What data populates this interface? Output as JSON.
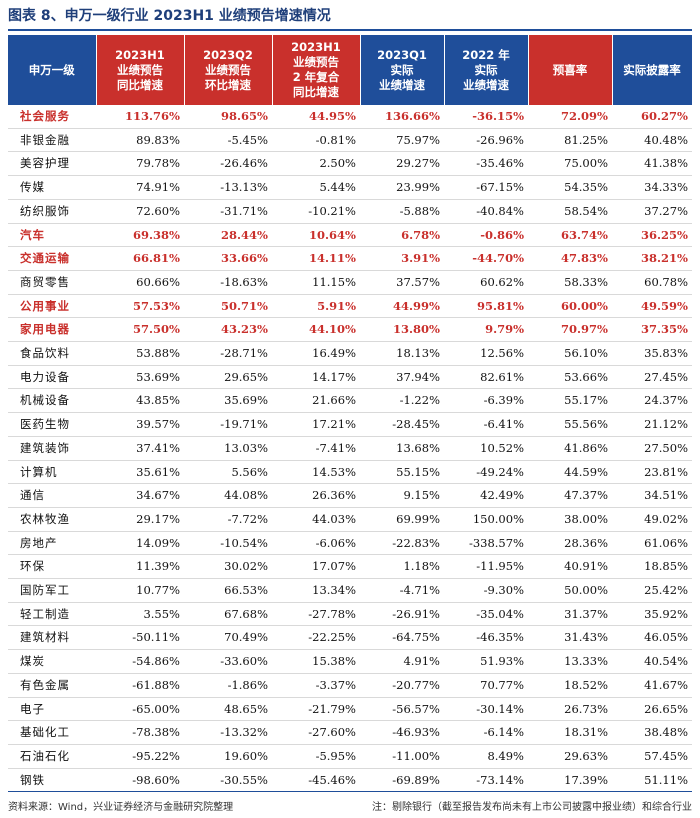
{
  "title": "图表 8、申万一级行业 2023H1 业绩预告增速情况",
  "headers": [
    {
      "text": "申万一级",
      "tone": "blue"
    },
    {
      "text": "2023H1\n业绩预告\n同比增速",
      "tone": "red"
    },
    {
      "text": "2023Q2\n业绩预告\n环比增速",
      "tone": "red"
    },
    {
      "text": "2023H1\n业绩预告\n2 年复合\n同比增速",
      "tone": "red"
    },
    {
      "text": "2023Q1\n实际\n业绩增速",
      "tone": "blue"
    },
    {
      "text": "2022 年\n实际\n业绩增速",
      "tone": "blue"
    },
    {
      "text": "预喜率",
      "tone": "red"
    },
    {
      "text": "实际披露率",
      "tone": "blue"
    }
  ],
  "rows": [
    {
      "industry": "社会服务",
      "h1_yoy": "113.76%",
      "q2_qoq": "98.65%",
      "h1_cagr2y": "44.95%",
      "q1_actual": "136.66%",
      "y2022_actual": "-36.15%",
      "positive_rate": "72.09%",
      "disclosure_rate": "60.27%",
      "highlight": true
    },
    {
      "industry": "非银金融",
      "h1_yoy": "89.83%",
      "q2_qoq": "-5.45%",
      "h1_cagr2y": "-0.81%",
      "q1_actual": "75.97%",
      "y2022_actual": "-26.96%",
      "positive_rate": "81.25%",
      "disclosure_rate": "40.48%",
      "highlight": false
    },
    {
      "industry": "美容护理",
      "h1_yoy": "79.78%",
      "q2_qoq": "-26.46%",
      "h1_cagr2y": "2.50%",
      "q1_actual": "29.27%",
      "y2022_actual": "-35.46%",
      "positive_rate": "75.00%",
      "disclosure_rate": "41.38%",
      "highlight": false
    },
    {
      "industry": "传媒",
      "h1_yoy": "74.91%",
      "q2_qoq": "-13.13%",
      "h1_cagr2y": "5.44%",
      "q1_actual": "23.99%",
      "y2022_actual": "-67.15%",
      "positive_rate": "54.35%",
      "disclosure_rate": "34.33%",
      "highlight": false
    },
    {
      "industry": "纺织服饰",
      "h1_yoy": "72.60%",
      "q2_qoq": "-31.71%",
      "h1_cagr2y": "-10.21%",
      "q1_actual": "-5.88%",
      "y2022_actual": "-40.84%",
      "positive_rate": "58.54%",
      "disclosure_rate": "37.27%",
      "highlight": false
    },
    {
      "industry": "汽车",
      "h1_yoy": "69.38%",
      "q2_qoq": "28.44%",
      "h1_cagr2y": "10.64%",
      "q1_actual": "6.78%",
      "y2022_actual": "-0.86%",
      "positive_rate": "63.74%",
      "disclosure_rate": "36.25%",
      "highlight": true
    },
    {
      "industry": "交通运输",
      "h1_yoy": "66.81%",
      "q2_qoq": "33.66%",
      "h1_cagr2y": "14.11%",
      "q1_actual": "3.91%",
      "y2022_actual": "-44.70%",
      "positive_rate": "47.83%",
      "disclosure_rate": "38.21%",
      "highlight": true
    },
    {
      "industry": "商贸零售",
      "h1_yoy": "60.66%",
      "q2_qoq": "-18.63%",
      "h1_cagr2y": "11.15%",
      "q1_actual": "37.57%",
      "y2022_actual": "60.62%",
      "positive_rate": "58.33%",
      "disclosure_rate": "60.78%",
      "highlight": false
    },
    {
      "industry": "公用事业",
      "h1_yoy": "57.53%",
      "q2_qoq": "50.71%",
      "h1_cagr2y": "5.91%",
      "q1_actual": "44.99%",
      "y2022_actual": "95.81%",
      "positive_rate": "60.00%",
      "disclosure_rate": "49.59%",
      "highlight": true
    },
    {
      "industry": "家用电器",
      "h1_yoy": "57.50%",
      "q2_qoq": "43.23%",
      "h1_cagr2y": "44.10%",
      "q1_actual": "13.80%",
      "y2022_actual": "9.79%",
      "positive_rate": "70.97%",
      "disclosure_rate": "37.35%",
      "highlight": true
    },
    {
      "industry": "食品饮料",
      "h1_yoy": "53.88%",
      "q2_qoq": "-28.71%",
      "h1_cagr2y": "16.49%",
      "q1_actual": "18.13%",
      "y2022_actual": "12.56%",
      "positive_rate": "56.10%",
      "disclosure_rate": "35.83%",
      "highlight": false
    },
    {
      "industry": "电力设备",
      "h1_yoy": "53.69%",
      "q2_qoq": "29.65%",
      "h1_cagr2y": "14.17%",
      "q1_actual": "37.94%",
      "y2022_actual": "82.61%",
      "positive_rate": "53.66%",
      "disclosure_rate": "27.45%",
      "highlight": false
    },
    {
      "industry": "机械设备",
      "h1_yoy": "43.85%",
      "q2_qoq": "35.69%",
      "h1_cagr2y": "21.66%",
      "q1_actual": "-1.22%",
      "y2022_actual": "-6.39%",
      "positive_rate": "55.17%",
      "disclosure_rate": "24.37%",
      "highlight": false
    },
    {
      "industry": "医药生物",
      "h1_yoy": "39.57%",
      "q2_qoq": "-19.71%",
      "h1_cagr2y": "17.21%",
      "q1_actual": "-28.45%",
      "y2022_actual": "-6.41%",
      "positive_rate": "55.56%",
      "disclosure_rate": "21.12%",
      "highlight": false
    },
    {
      "industry": "建筑装饰",
      "h1_yoy": "37.41%",
      "q2_qoq": "13.03%",
      "h1_cagr2y": "-7.41%",
      "q1_actual": "13.68%",
      "y2022_actual": "10.52%",
      "positive_rate": "41.86%",
      "disclosure_rate": "27.50%",
      "highlight": false
    },
    {
      "industry": "计算机",
      "h1_yoy": "35.61%",
      "q2_qoq": "5.56%",
      "h1_cagr2y": "14.53%",
      "q1_actual": "55.15%",
      "y2022_actual": "-49.24%",
      "positive_rate": "44.59%",
      "disclosure_rate": "23.81%",
      "highlight": false
    },
    {
      "industry": "通信",
      "h1_yoy": "34.67%",
      "q2_qoq": "44.08%",
      "h1_cagr2y": "26.36%",
      "q1_actual": "9.15%",
      "y2022_actual": "42.49%",
      "positive_rate": "47.37%",
      "disclosure_rate": "34.51%",
      "highlight": false
    },
    {
      "industry": "农林牧渔",
      "h1_yoy": "29.17%",
      "q2_qoq": "-7.72%",
      "h1_cagr2y": "44.03%",
      "q1_actual": "69.99%",
      "y2022_actual": "150.00%",
      "positive_rate": "38.00%",
      "disclosure_rate": "49.02%",
      "highlight": false
    },
    {
      "industry": "房地产",
      "h1_yoy": "14.09%",
      "q2_qoq": "-10.54%",
      "h1_cagr2y": "-6.06%",
      "q1_actual": "-22.83%",
      "y2022_actual": "-338.57%",
      "positive_rate": "28.36%",
      "disclosure_rate": "61.06%",
      "highlight": false
    },
    {
      "industry": "环保",
      "h1_yoy": "11.39%",
      "q2_qoq": "30.02%",
      "h1_cagr2y": "17.07%",
      "q1_actual": "1.18%",
      "y2022_actual": "-11.95%",
      "positive_rate": "40.91%",
      "disclosure_rate": "18.85%",
      "highlight": false
    },
    {
      "industry": "国防军工",
      "h1_yoy": "10.77%",
      "q2_qoq": "66.53%",
      "h1_cagr2y": "13.34%",
      "q1_actual": "-4.71%",
      "y2022_actual": "-9.30%",
      "positive_rate": "50.00%",
      "disclosure_rate": "25.42%",
      "highlight": false
    },
    {
      "industry": "轻工制造",
      "h1_yoy": "3.55%",
      "q2_qoq": "67.68%",
      "h1_cagr2y": "-27.78%",
      "q1_actual": "-26.91%",
      "y2022_actual": "-35.04%",
      "positive_rate": "31.37%",
      "disclosure_rate": "35.92%",
      "highlight": false
    },
    {
      "industry": "建筑材料",
      "h1_yoy": "-50.11%",
      "q2_qoq": "70.49%",
      "h1_cagr2y": "-22.25%",
      "q1_actual": "-64.75%",
      "y2022_actual": "-46.35%",
      "positive_rate": "31.43%",
      "disclosure_rate": "46.05%",
      "highlight": false
    },
    {
      "industry": "煤炭",
      "h1_yoy": "-54.86%",
      "q2_qoq": "-33.60%",
      "h1_cagr2y": "15.38%",
      "q1_actual": "4.91%",
      "y2022_actual": "51.93%",
      "positive_rate": "13.33%",
      "disclosure_rate": "40.54%",
      "highlight": false
    },
    {
      "industry": "有色金属",
      "h1_yoy": "-61.88%",
      "q2_qoq": "-1.86%",
      "h1_cagr2y": "-3.37%",
      "q1_actual": "-20.77%",
      "y2022_actual": "70.77%",
      "positive_rate": "18.52%",
      "disclosure_rate": "41.67%",
      "highlight": false
    },
    {
      "industry": "电子",
      "h1_yoy": "-65.00%",
      "q2_qoq": "48.65%",
      "h1_cagr2y": "-21.79%",
      "q1_actual": "-56.57%",
      "y2022_actual": "-30.14%",
      "positive_rate": "26.73%",
      "disclosure_rate": "26.65%",
      "highlight": false
    },
    {
      "industry": "基础化工",
      "h1_yoy": "-78.38%",
      "q2_qoq": "-13.32%",
      "h1_cagr2y": "-27.60%",
      "q1_actual": "-46.93%",
      "y2022_actual": "-6.14%",
      "positive_rate": "18.31%",
      "disclosure_rate": "38.48%",
      "highlight": false
    },
    {
      "industry": "石油石化",
      "h1_yoy": "-95.22%",
      "q2_qoq": "19.60%",
      "h1_cagr2y": "-5.95%",
      "q1_actual": "-11.00%",
      "y2022_actual": "8.49%",
      "positive_rate": "29.63%",
      "disclosure_rate": "57.45%",
      "highlight": false
    },
    {
      "industry": "钢铁",
      "h1_yoy": "-98.60%",
      "q2_qoq": "-30.55%",
      "h1_cagr2y": "-45.46%",
      "q1_actual": "-69.89%",
      "y2022_actual": "-73.14%",
      "positive_rate": "17.39%",
      "disclosure_rate": "51.11%",
      "highlight": false
    }
  ],
  "footer": {
    "source": "资料来源：Wind，兴业证券经济与金融研究院整理",
    "note": "注：剔除银行（截至报告发布尚未有上市公司披露中报业绩）和综合行业"
  },
  "colors": {
    "header_blue": "#1f4e9a",
    "header_red": "#c9302c",
    "highlight_text": "#c9302c"
  }
}
